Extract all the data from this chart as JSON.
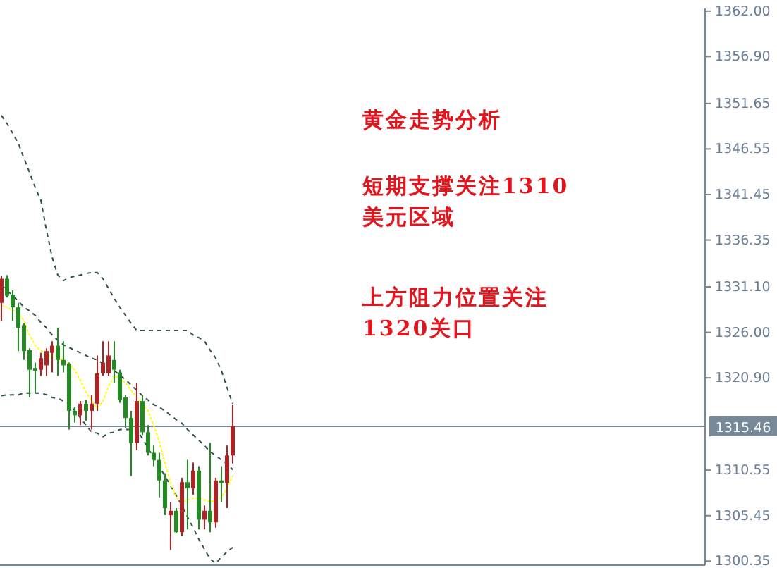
{
  "chart_data": {
    "type": "candlestick",
    "categories": [
      null,
      null,
      null,
      null,
      null,
      null,
      null,
      null,
      null,
      null,
      null,
      null,
      null,
      null,
      null,
      null,
      null,
      null,
      null,
      null,
      null,
      null,
      null,
      null,
      null,
      null,
      null,
      null,
      null,
      null,
      null,
      null,
      null,
      null,
      null,
      null,
      null,
      null,
      null,
      null,
      null,
      null,
      null,
      null,
      null,
      null,
      null,
      null,
      null,
      null,
      null,
      null,
      null,
      null,
      null,
      null,
      null,
      null,
      null,
      null,
      null,
      null,
      null,
      null,
      null,
      null,
      null,
      null,
      null,
      null,
      null,
      null,
      null,
      null,
      null,
      null,
      null,
      null,
      null,
      null,
      null,
      null,
      null,
      null,
      null,
      null,
      null,
      null,
      null,
      null,
      null,
      null,
      null,
      null,
      null,
      null,
      null,
      null,
      null,
      null,
      null,
      null,
      null,
      null,
      null,
      null,
      null,
      null,
      null,
      null,
      null,
      null,
      null,
      null,
      null,
      null,
      null,
      null,
      null,
      null,
      null,
      null,
      null,
      null,
      null
    ],
    "ohlc": [
      [
        1329.3,
        1332.3,
        1327.3,
        1332.0
      ],
      [
        1332.0,
        1332.4,
        1329.9,
        1330.1
      ],
      [
        1330.2,
        1330.7,
        1327.3,
        1328.8
      ],
      [
        1328.8,
        1329.3,
        1323.9,
        1326.5
      ],
      [
        1326.8,
        1327.0,
        1322.9,
        1323.9
      ],
      [
        1324.0,
        1324.2,
        1318.7,
        1321.8
      ],
      [
        1322.0,
        1322.6,
        1319.2,
        1321.7
      ],
      [
        1321.8,
        1323.7,
        1321.1,
        1323.1
      ],
      [
        1322.3,
        1324.2,
        1321.1,
        1323.9
      ],
      [
        1323.7,
        1325.0,
        1321.5,
        1324.5
      ],
      [
        1324.5,
        1326.5,
        1321.1,
        1322.9
      ],
      [
        1322.9,
        1325.0,
        1321.5,
        1322.3
      ],
      [
        1322.5,
        1322.6,
        1315.1,
        1317.2
      ],
      [
        1317.2,
        1317.6,
        1315.9,
        1316.7
      ],
      [
        1316.7,
        1318.3,
        1315.6,
        1318.0
      ],
      [
        1318.0,
        1318.4,
        1316.1,
        1317.2
      ],
      [
        1317.2,
        1319.0,
        1315.1,
        1318.0
      ],
      [
        1318.0,
        1323.4,
        1317.2,
        1321.4
      ],
      [
        1321.4,
        1325.0,
        1321.1,
        1322.6
      ],
      [
        1321.4,
        1325.0,
        1321.1,
        1323.4
      ],
      [
        1322.9,
        1325.0,
        1320.3,
        1321.8
      ],
      [
        1321.5,
        1321.8,
        1318.1,
        1318.4
      ],
      [
        1318.7,
        1319.0,
        1315.3,
        1316.4
      ],
      [
        1316.4,
        1317.2,
        1309.9,
        1313.6
      ],
      [
        1313.6,
        1320.3,
        1312.8,
        1318.3
      ],
      [
        1318.3,
        1319.0,
        1314.5,
        1314.8
      ],
      [
        1314.8,
        1315.6,
        1312.2,
        1312.5
      ],
      [
        1312.5,
        1313.3,
        1311.0,
        1311.7
      ],
      [
        1311.7,
        1312.5,
        1307.5,
        1309.4
      ],
      [
        1309.4,
        1310.2,
        1305.5,
        1306.3
      ],
      [
        1305.5,
        1307.0,
        1301.6,
        1306.0
      ],
      [
        1306.0,
        1306.3,
        1303.5,
        1303.6
      ],
      [
        1303.6,
        1309.7,
        1303.2,
        1309.2
      ],
      [
        1309.2,
        1311.7,
        1303.9,
        1308.5
      ],
      [
        1308.5,
        1311.4,
        1307.8,
        1310.5
      ],
      [
        1310.5,
        1311.0,
        1303.9,
        1305.0
      ],
      [
        1305.0,
        1306.6,
        1303.9,
        1306.0
      ],
      [
        1306.0,
        1313.6,
        1303.6,
        1304.7
      ],
      [
        1304.7,
        1309.7,
        1304.1,
        1309.4
      ],
      [
        1309.4,
        1311.0,
        1307.0,
        1309.1
      ],
      [
        1309.1,
        1313.3,
        1306.3,
        1312.2
      ],
      [
        1312.2,
        1317.9,
        1311.3,
        1315.46
      ],
      null,
      null,
      null,
      null,
      null,
      null,
      null,
      null,
      null,
      null,
      null,
      null,
      null,
      null,
      null,
      null,
      null,
      null,
      null,
      null,
      null,
      null,
      null,
      null,
      null,
      null,
      null,
      null,
      null,
      null,
      null,
      null,
      null,
      null,
      null,
      null,
      null,
      null,
      null,
      null,
      null,
      null,
      null,
      null,
      null,
      null,
      null,
      null,
      null,
      null,
      null,
      null,
      null,
      null,
      null,
      null,
      null,
      null,
      null,
      null,
      null,
      null,
      null,
      null,
      null,
      null,
      null,
      null,
      null,
      null,
      null,
      null,
      null,
      null,
      null,
      null,
      null,
      null,
      null,
      null,
      null,
      null,
      null
    ],
    "colors": [
      "#b22222",
      "#228b22",
      "#228b22",
      "#228b22",
      "#228b22",
      "#228b22",
      "#228b22",
      "#b22222",
      "#b22222",
      "#b22222",
      "#228b22",
      "#228b22",
      "#228b22",
      "#228b22",
      "#b22222",
      "#228b22",
      "#b22222",
      "#b22222",
      "#b22222",
      "#b22222",
      "#228b22",
      "#228b22",
      "#228b22",
      "#228b22",
      "#b22222",
      "#228b22",
      "#228b22",
      "#228b22",
      "#228b22",
      "#228b22",
      "#b22222",
      "#228b22",
      "#b22222",
      "#228b22",
      "#b22222",
      "#228b22",
      "#b22222",
      "#228b22",
      "#b22222",
      "#228b22",
      "#b22222",
      "#b22222",
      null,
      null,
      null,
      null,
      null,
      null,
      null,
      null,
      null,
      null,
      null,
      null,
      null,
      null,
      null,
      null,
      null,
      null,
      null,
      null,
      null,
      null,
      null,
      null,
      null,
      null,
      null,
      null,
      null,
      null,
      null,
      null,
      null,
      null,
      null,
      null,
      null,
      null,
      null,
      null,
      null,
      null,
      null,
      null,
      null,
      null,
      null,
      null,
      null,
      null,
      null,
      null,
      null,
      null,
      null,
      null,
      null,
      null,
      null,
      null,
      null,
      null,
      null,
      null,
      null,
      null,
      null,
      null,
      null,
      null,
      null,
      null,
      null,
      null,
      null,
      null,
      null,
      null,
      null,
      null,
      null,
      null,
      null
    ],
    "series": [
      {
        "type": "line",
        "color": "#2f4f4f",
        "line_style": "dashed",
        "values": [
          1350.3,
          1349.4,
          1348.3,
          1347.2,
          1345.5,
          1343.9,
          1342.2,
          1340.8,
          1337.4,
          1334.4,
          1332.4,
          1331.8,
          1332.1,
          1332.3,
          1332.4,
          1332.6,
          1332.7,
          1332.7,
          1332.0,
          1330.9,
          1329.8,
          1328.8,
          1327.9,
          1327.0,
          1326.2,
          1326.2,
          1326.2,
          1326.2,
          1326.2,
          1326.2,
          1326.2,
          1326.2,
          1326.2,
          1326.2,
          1325.7,
          1325.4,
          1325.0,
          1324.0,
          1323.1,
          1321.7,
          1319.8,
          1318.0,
          null,
          null,
          null,
          null,
          null,
          null,
          null,
          null,
          null,
          null,
          null,
          null,
          null,
          null,
          null,
          null,
          null,
          null,
          null,
          null,
          null,
          null,
          null,
          null,
          null,
          null,
          null,
          null,
          null,
          null,
          null,
          null,
          null,
          null,
          null,
          null,
          null,
          null,
          null,
          null,
          null,
          null,
          null,
          null,
          null,
          null,
          null,
          null,
          null,
          null,
          null,
          null,
          null,
          null,
          null,
          null,
          null,
          null,
          null,
          null,
          null,
          null,
          null,
          null,
          null,
          null,
          null,
          null,
          null,
          null,
          null,
          null,
          null,
          null,
          null,
          null,
          null,
          null,
          null,
          null,
          null,
          null,
          null
        ]
      },
      {
        "type": "line",
        "color": "#2f4f4f",
        "line_style": "dashed",
        "values": [
          1331.3,
          1330.7,
          1330.1,
          1329.5,
          1328.8,
          1328.4,
          1327.9,
          1327.1,
          1326.5,
          1325.7,
          1325.1,
          1324.6,
          1324.3,
          1324.0,
          1323.7,
          1323.4,
          1323.1,
          1322.9,
          1322.5,
          1322.0,
          1321.7,
          1321.2,
          1320.7,
          1320.1,
          1319.5,
          1318.9,
          1318.4,
          1317.9,
          1317.6,
          1317.2,
          1316.7,
          1316.2,
          1315.8,
          1315.1,
          1314.5,
          1313.9,
          1313.3,
          1312.6,
          1312.2,
          1311.7,
          1311.3,
          1310.6,
          null,
          null,
          null,
          null,
          null,
          null,
          null,
          null,
          null,
          null,
          null,
          null,
          null,
          null,
          null,
          null,
          null,
          null,
          null,
          null,
          null,
          null,
          null,
          null,
          null,
          null,
          null,
          null,
          null,
          null,
          null,
          null,
          null,
          null,
          null,
          null,
          null,
          null,
          null,
          null,
          null,
          null,
          null,
          null,
          null,
          null,
          null,
          null,
          null,
          null,
          null,
          null,
          null,
          null,
          null,
          null,
          null,
          null,
          null,
          null,
          null,
          null,
          null,
          null,
          null,
          null,
          null,
          null,
          null,
          null,
          null,
          null,
          null,
          null,
          null,
          null,
          null,
          null,
          null,
          null,
          null,
          null,
          null
        ]
      },
      {
        "type": "line",
        "color": "#2f4f4f",
        "line_style": "dashed",
        "values": [
          1318.9,
          1319.0,
          1319.0,
          1319.0,
          1319.2,
          1319.2,
          1319.2,
          1319.2,
          1319.0,
          1318.7,
          1318.6,
          1318.3,
          1318.0,
          1317.2,
          1316.4,
          1315.6,
          1314.8,
          1314.7,
          1314.3,
          1314.7,
          1314.8,
          1315.1,
          1315.1,
          1315.1,
          1315.1,
          1314.1,
          1313.0,
          1312.0,
          1310.9,
          1309.9,
          1308.8,
          1307.7,
          1306.6,
          1305.3,
          1304.1,
          1302.8,
          1301.7,
          1300.6,
          1300.1,
          1300.8,
          1301.4,
          1301.9,
          null,
          null,
          null,
          null,
          null,
          null,
          null,
          null,
          null,
          null,
          null,
          null,
          null,
          null,
          null,
          null,
          null,
          null,
          null,
          null,
          null,
          null,
          null,
          null,
          null,
          null,
          null,
          null,
          null,
          null,
          null,
          null,
          null,
          null,
          null,
          null,
          null,
          null,
          null,
          null,
          null,
          null,
          null,
          null,
          null,
          null,
          null,
          null,
          null,
          null,
          null,
          null,
          null,
          null,
          null,
          null,
          null,
          null,
          null,
          null,
          null,
          null,
          null,
          null,
          null,
          null,
          null,
          null,
          null,
          null,
          null,
          null,
          null,
          null,
          null,
          null,
          null,
          null,
          null,
          null,
          null,
          null,
          null
        ]
      },
      {
        "type": "line",
        "color": "#ffff00",
        "line_style": "dotted",
        "values": [
          1329.0,
          1328.8,
          1328.5,
          1328.2,
          1327.3,
          1325.7,
          1324.5,
          1324.0,
          1323.5,
          1323.2,
          1323.1,
          1322.9,
          1322.5,
          1321.8,
          1320.6,
          1319.3,
          1318.3,
          1317.5,
          1318.3,
          1320.0,
          1321.1,
          1320.9,
          1320.3,
          1319.5,
          1318.7,
          1317.9,
          1317.2,
          1315.6,
          1313.7,
          1311.3,
          1309.1,
          1307.5,
          1307.0,
          1307.2,
          1307.4,
          1307.5,
          1307.2,
          1307.0,
          1307.2,
          1307.5,
          1308.5,
          1309.9,
          null,
          null,
          null,
          null,
          null,
          null,
          null,
          null,
          null,
          null,
          null,
          null,
          null,
          null,
          null,
          null,
          null,
          null,
          null,
          null,
          null,
          null,
          null,
          null,
          null,
          null,
          null,
          null,
          null,
          null,
          null,
          null,
          null,
          null,
          null,
          null,
          null,
          null,
          null,
          null,
          null,
          null,
          null,
          null,
          null,
          null,
          null,
          null,
          null,
          null,
          null,
          null,
          null,
          null,
          null,
          null,
          null,
          null,
          null,
          null,
          null,
          null,
          null,
          null,
          null,
          null,
          null,
          null,
          null,
          null,
          null,
          null,
          null,
          null,
          null,
          null,
          null,
          null,
          null,
          null,
          null,
          null,
          null
        ]
      }
    ],
    "ylim": [
      1299.9,
      1362.3
    ],
    "yticks": [
      {
        "value": 1362,
        "label": "1362.00"
      },
      {
        "value": 1356.9,
        "label": "1356.90"
      },
      1351.65,
      1346.55,
      1341.45,
      1336.35,
      {
        "value": 1331.1,
        "label": "1331.10"
      },
      {
        "value": 1326,
        "label": "1326.00"
      },
      {
        "value": 1320.9,
        "label": "1320.90"
      },
      1310.55,
      1305.45,
      1300.35
    ],
    "ref_lines": [
      {
        "axis": "y",
        "value": 1315.46,
        "label": "1315.46",
        "color": "#778899"
      }
    ],
    "annotations": [
      "黄金走势分析",
      "短期支撑关注1310\n美元区域",
      "上方阻力位置关注\n1320关口"
    ]
  }
}
